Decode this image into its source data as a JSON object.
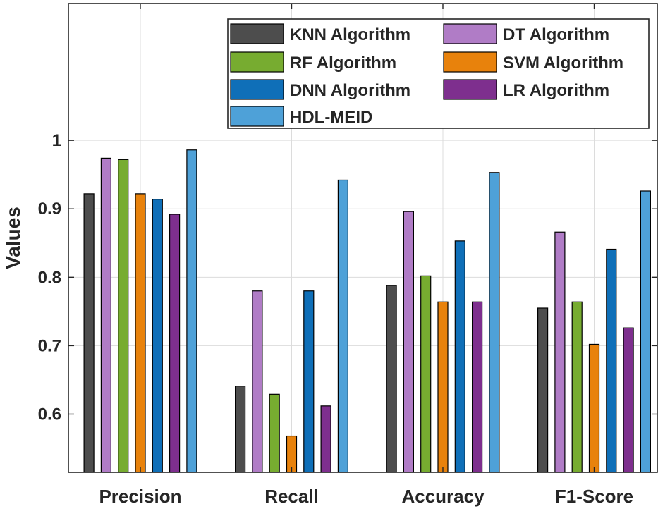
{
  "chart_data": {
    "type": "bar",
    "title": "",
    "xlabel": "",
    "ylabel": "Values",
    "ylim": [
      0.515,
      1.2
    ],
    "yticks": [
      0.6,
      0.7,
      0.8,
      0.9,
      1
    ],
    "ytick_labels": [
      "0.6",
      "0.7",
      "0.8",
      "0.9",
      "1"
    ],
    "grid": true,
    "legend_position": "top-right",
    "categories": [
      "Precision",
      "Recall",
      "Accuracy",
      "F1-Score"
    ],
    "series": [
      {
        "name": "KNN Algorithm",
        "color": "#4d4d4d",
        "values": [
          0.922,
          0.641,
          0.788,
          0.755
        ]
      },
      {
        "name": "DT Algorithm",
        "color": "#b07cc6",
        "values": [
          0.974,
          0.78,
          0.896,
          0.866
        ]
      },
      {
        "name": "RF Algorithm",
        "color": "#77ac30",
        "values": [
          0.972,
          0.629,
          0.802,
          0.764
        ]
      },
      {
        "name": "SVM Algorithm",
        "color": "#e8820c",
        "values": [
          0.922,
          0.568,
          0.764,
          0.702
        ]
      },
      {
        "name": "DNN Algorithm",
        "color": "#0f6fb8",
        "values": [
          0.914,
          0.78,
          0.853,
          0.841
        ]
      },
      {
        "name": "LR Algorithm",
        "color": "#7e2f8e",
        "values": [
          0.892,
          0.612,
          0.764,
          0.726
        ]
      },
      {
        "name": "HDL-MEID",
        "color": "#4ea1d8",
        "values": [
          0.986,
          0.942,
          0.953,
          0.926
        ]
      }
    ]
  }
}
